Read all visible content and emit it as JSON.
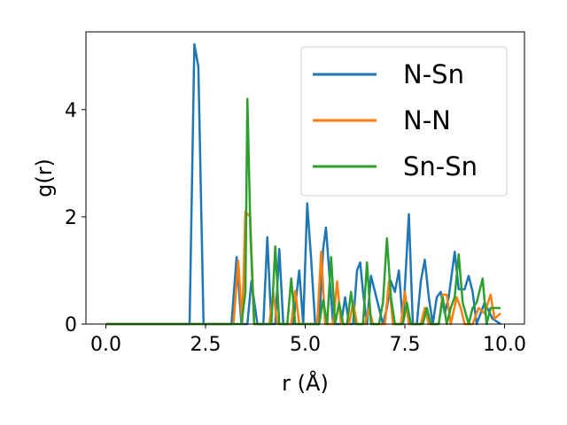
{
  "chart_data": {
    "type": "line",
    "title": "",
    "xlabel": "r (Å)",
    "ylabel": "g(r)",
    "xlim": [
      -0.5,
      10.5
    ],
    "ylim": [
      0,
      5.45
    ],
    "xticks": [
      0.0,
      2.5,
      5.0,
      7.5,
      10.0
    ],
    "xtick_labels": [
      "0.0",
      "2.5",
      "5.0",
      "7.5",
      "10.0"
    ],
    "yticks": [
      0,
      2,
      4
    ],
    "ytick_labels": [
      "0",
      "2",
      "4"
    ],
    "grid": false,
    "legend_position": "top-right",
    "series": [
      {
        "name": "N-Sn",
        "color": "#1f77b4",
        "points": [
          [
            0,
            0
          ],
          [
            2.1,
            0
          ],
          [
            2.22,
            5.22
          ],
          [
            2.32,
            4.8
          ],
          [
            2.45,
            0
          ],
          [
            3.15,
            0
          ],
          [
            3.28,
            1.25
          ],
          [
            3.4,
            0
          ],
          [
            3.55,
            0
          ],
          [
            3.65,
            0.8
          ],
          [
            3.8,
            0
          ],
          [
            3.95,
            0
          ],
          [
            4.05,
            1.62
          ],
          [
            4.15,
            0
          ],
          [
            4.25,
            0
          ],
          [
            4.35,
            1.4
          ],
          [
            4.45,
            0
          ],
          [
            4.7,
            0
          ],
          [
            4.85,
            1.0
          ],
          [
            4.95,
            0
          ],
          [
            5.05,
            2.25
          ],
          [
            5.15,
            1.2
          ],
          [
            5.25,
            0
          ],
          [
            5.35,
            0
          ],
          [
            5.45,
            1.4
          ],
          [
            5.52,
            1.8
          ],
          [
            5.6,
            1.0
          ],
          [
            5.7,
            0
          ],
          [
            5.9,
            0
          ],
          [
            6.0,
            0.5
          ],
          [
            6.1,
            0
          ],
          [
            6.2,
            0
          ],
          [
            6.3,
            1.0
          ],
          [
            6.38,
            1.15
          ],
          [
            6.45,
            0.6
          ],
          [
            6.55,
            0
          ],
          [
            6.65,
            0.9
          ],
          [
            6.75,
            0.6
          ],
          [
            6.85,
            0.3
          ],
          [
            6.95,
            0
          ],
          [
            7.05,
            0.3
          ],
          [
            7.15,
            0.8
          ],
          [
            7.25,
            0.6
          ],
          [
            7.35,
            1.0
          ],
          [
            7.45,
            0
          ],
          [
            7.6,
            2.05
          ],
          [
            7.7,
            0
          ],
          [
            7.8,
            0
          ],
          [
            7.9,
            0.8
          ],
          [
            8.0,
            1.2
          ],
          [
            8.1,
            0.5
          ],
          [
            8.2,
            0
          ],
          [
            8.3,
            0.5
          ],
          [
            8.4,
            0.6
          ],
          [
            8.5,
            0.2
          ],
          [
            8.6,
            0.5
          ],
          [
            8.75,
            1.35
          ],
          [
            8.85,
            0.65
          ],
          [
            9.0,
            0.65
          ],
          [
            9.1,
            0.9
          ],
          [
            9.2,
            0.6
          ],
          [
            9.3,
            0
          ],
          [
            9.5,
            0.4
          ],
          [
            9.6,
            0.25
          ],
          [
            9.7,
            0.1
          ],
          [
            9.9,
            0
          ]
        ]
      },
      {
        "name": "N-N",
        "color": "#ff7f0e",
        "points": [
          [
            0,
            0
          ],
          [
            3.2,
            0
          ],
          [
            3.32,
            1.18
          ],
          [
            3.42,
            0
          ],
          [
            3.5,
            2.1
          ],
          [
            3.62,
            2.0
          ],
          [
            3.72,
            0
          ],
          [
            4.1,
            0
          ],
          [
            4.2,
            0.6
          ],
          [
            4.3,
            0
          ],
          [
            4.65,
            0
          ],
          [
            4.75,
            0.62
          ],
          [
            4.85,
            0
          ],
          [
            5.3,
            0
          ],
          [
            5.4,
            1.35
          ],
          [
            5.5,
            0
          ],
          [
            5.7,
            0
          ],
          [
            5.8,
            0.8
          ],
          [
            5.9,
            0
          ],
          [
            6.1,
            0
          ],
          [
            6.2,
            0.4
          ],
          [
            6.3,
            0
          ],
          [
            6.5,
            0
          ],
          [
            6.6,
            0.3
          ],
          [
            6.7,
            0
          ],
          [
            7.0,
            0
          ],
          [
            7.1,
            0.8
          ],
          [
            7.2,
            0
          ],
          [
            7.4,
            0
          ],
          [
            7.5,
            0.6
          ],
          [
            7.6,
            0
          ],
          [
            7.9,
            0
          ],
          [
            8.0,
            0.3
          ],
          [
            8.1,
            0
          ],
          [
            8.35,
            0
          ],
          [
            8.45,
            0.55
          ],
          [
            8.55,
            0.55
          ],
          [
            8.65,
            0
          ],
          [
            8.8,
            0.5
          ],
          [
            8.9,
            0.3
          ],
          [
            9.0,
            0
          ],
          [
            9.2,
            0
          ],
          [
            9.35,
            0.3
          ],
          [
            9.5,
            0.2
          ],
          [
            9.65,
            0.55
          ],
          [
            9.75,
            0.1
          ],
          [
            9.9,
            0.2
          ]
        ]
      },
      {
        "name": "Sn-Sn",
        "color": "#2ca02c",
        "points": [
          [
            0,
            0
          ],
          [
            3.4,
            0
          ],
          [
            3.5,
            0.6
          ],
          [
            3.55,
            4.2
          ],
          [
            3.63,
            1.6
          ],
          [
            3.72,
            0
          ],
          [
            4.15,
            0
          ],
          [
            4.25,
            1.45
          ],
          [
            4.35,
            0
          ],
          [
            4.55,
            0
          ],
          [
            4.65,
            0.85
          ],
          [
            4.75,
            0
          ],
          [
            5.35,
            0
          ],
          [
            5.45,
            0.45
          ],
          [
            5.55,
            0
          ],
          [
            5.65,
            1.25
          ],
          [
            5.75,
            0
          ],
          [
            5.85,
            0.4
          ],
          [
            5.95,
            0
          ],
          [
            6.05,
            0
          ],
          [
            6.15,
            0.6
          ],
          [
            6.25,
            0
          ],
          [
            6.45,
            0
          ],
          [
            6.55,
            1.15
          ],
          [
            6.65,
            0
          ],
          [
            6.85,
            0
          ],
          [
            6.95,
            0.4
          ],
          [
            7.05,
            1.6
          ],
          [
            7.15,
            0.5
          ],
          [
            7.25,
            0
          ],
          [
            7.45,
            0
          ],
          [
            7.55,
            0.4
          ],
          [
            7.65,
            0
          ],
          [
            7.95,
            0
          ],
          [
            8.05,
            0.3
          ],
          [
            8.15,
            0
          ],
          [
            8.35,
            0
          ],
          [
            8.45,
            0.5
          ],
          [
            8.55,
            0
          ],
          [
            8.65,
            0.3
          ],
          [
            8.75,
            0.5
          ],
          [
            8.85,
            1.3
          ],
          [
            8.95,
            0.4
          ],
          [
            9.1,
            0
          ],
          [
            9.2,
            0.3
          ],
          [
            9.3,
            0.4
          ],
          [
            9.45,
            0.85
          ],
          [
            9.55,
            0
          ],
          [
            9.65,
            0.3
          ],
          [
            9.75,
            0.3
          ],
          [
            9.9,
            0.3
          ]
        ]
      }
    ]
  }
}
